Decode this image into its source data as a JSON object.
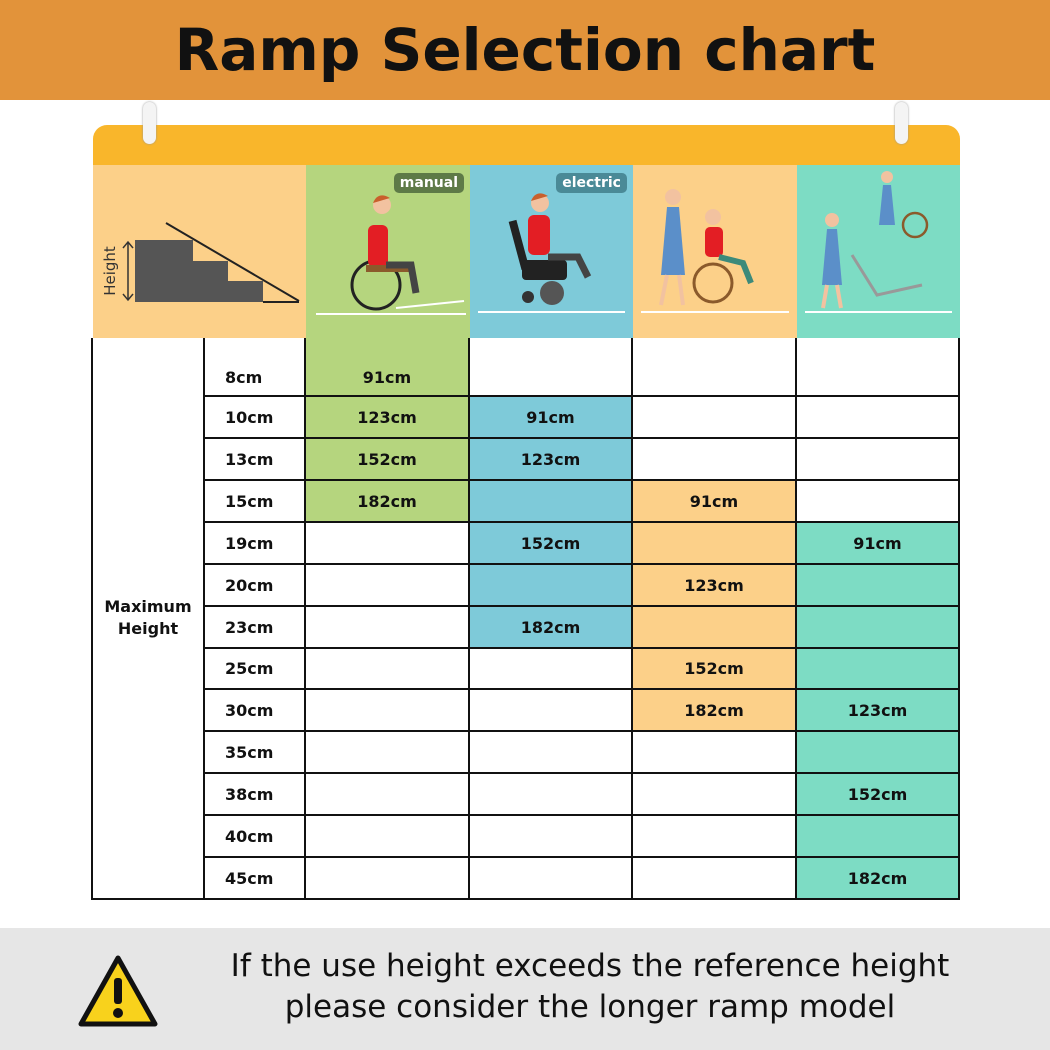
{
  "title": "Ramp Selection chart",
  "colors": {
    "title_bg": "#E2933A",
    "board_top": "#F9B62B",
    "label_bg": "#FCD089",
    "manual": "#B5D57E",
    "electric": "#7ECAD9",
    "attendant": "#FCD089",
    "stair": "#7DDCC4",
    "footer_bg": "#E6E6E6"
  },
  "header": {
    "height_label": "Height",
    "manual_tag": "manual",
    "electric_tag": "electric"
  },
  "chart_data": {
    "type": "table",
    "title": "Ramp Selection chart",
    "row_header": "Maximum Height",
    "columns": [
      "manual",
      "electric",
      "attendant",
      "stair"
    ],
    "rows": [
      {
        "height": "8cm",
        "cells": [
          {
            "fill": true,
            "text": "91cm"
          },
          {
            "fill": false,
            "text": ""
          },
          {
            "fill": false,
            "text": ""
          },
          {
            "fill": false,
            "text": ""
          }
        ]
      },
      {
        "height": "10cm",
        "cells": [
          {
            "fill": true,
            "text": "123cm"
          },
          {
            "fill": true,
            "text": "91cm"
          },
          {
            "fill": false,
            "text": ""
          },
          {
            "fill": false,
            "text": ""
          }
        ]
      },
      {
        "height": "13cm",
        "cells": [
          {
            "fill": true,
            "text": "152cm"
          },
          {
            "fill": true,
            "text": "123cm"
          },
          {
            "fill": false,
            "text": ""
          },
          {
            "fill": false,
            "text": ""
          }
        ]
      },
      {
        "height": "15cm",
        "cells": [
          {
            "fill": true,
            "text": "182cm"
          },
          {
            "fill": true,
            "text": ""
          },
          {
            "fill": true,
            "text": "91cm"
          },
          {
            "fill": false,
            "text": ""
          }
        ]
      },
      {
        "height": "19cm",
        "cells": [
          {
            "fill": false,
            "text": ""
          },
          {
            "fill": true,
            "text": "152cm"
          },
          {
            "fill": true,
            "text": ""
          },
          {
            "fill": true,
            "text": "91cm"
          }
        ]
      },
      {
        "height": "20cm",
        "cells": [
          {
            "fill": false,
            "text": ""
          },
          {
            "fill": true,
            "text": ""
          },
          {
            "fill": true,
            "text": "123cm"
          },
          {
            "fill": true,
            "text": ""
          }
        ]
      },
      {
        "height": "23cm",
        "cells": [
          {
            "fill": false,
            "text": ""
          },
          {
            "fill": true,
            "text": "182cm"
          },
          {
            "fill": true,
            "text": ""
          },
          {
            "fill": true,
            "text": ""
          }
        ]
      },
      {
        "height": "25cm",
        "cells": [
          {
            "fill": false,
            "text": ""
          },
          {
            "fill": false,
            "text": ""
          },
          {
            "fill": true,
            "text": "152cm"
          },
          {
            "fill": true,
            "text": ""
          }
        ]
      },
      {
        "height": "30cm",
        "cells": [
          {
            "fill": false,
            "text": ""
          },
          {
            "fill": false,
            "text": ""
          },
          {
            "fill": true,
            "text": "182cm"
          },
          {
            "fill": true,
            "text": "123cm"
          }
        ]
      },
      {
        "height": "35cm",
        "cells": [
          {
            "fill": false,
            "text": ""
          },
          {
            "fill": false,
            "text": ""
          },
          {
            "fill": false,
            "text": ""
          },
          {
            "fill": true,
            "text": ""
          }
        ]
      },
      {
        "height": "38cm",
        "cells": [
          {
            "fill": false,
            "text": ""
          },
          {
            "fill": false,
            "text": ""
          },
          {
            "fill": false,
            "text": ""
          },
          {
            "fill": true,
            "text": "152cm"
          }
        ]
      },
      {
        "height": "40cm",
        "cells": [
          {
            "fill": false,
            "text": ""
          },
          {
            "fill": false,
            "text": ""
          },
          {
            "fill": false,
            "text": ""
          },
          {
            "fill": true,
            "text": ""
          }
        ]
      },
      {
        "height": "45cm",
        "cells": [
          {
            "fill": false,
            "text": ""
          },
          {
            "fill": false,
            "text": ""
          },
          {
            "fill": false,
            "text": ""
          },
          {
            "fill": true,
            "text": "182cm"
          }
        ]
      }
    ]
  },
  "footer": {
    "icon": "warning-icon",
    "line1": "If the use height exceeds the reference height",
    "line2": "please consider the longer ramp model"
  }
}
